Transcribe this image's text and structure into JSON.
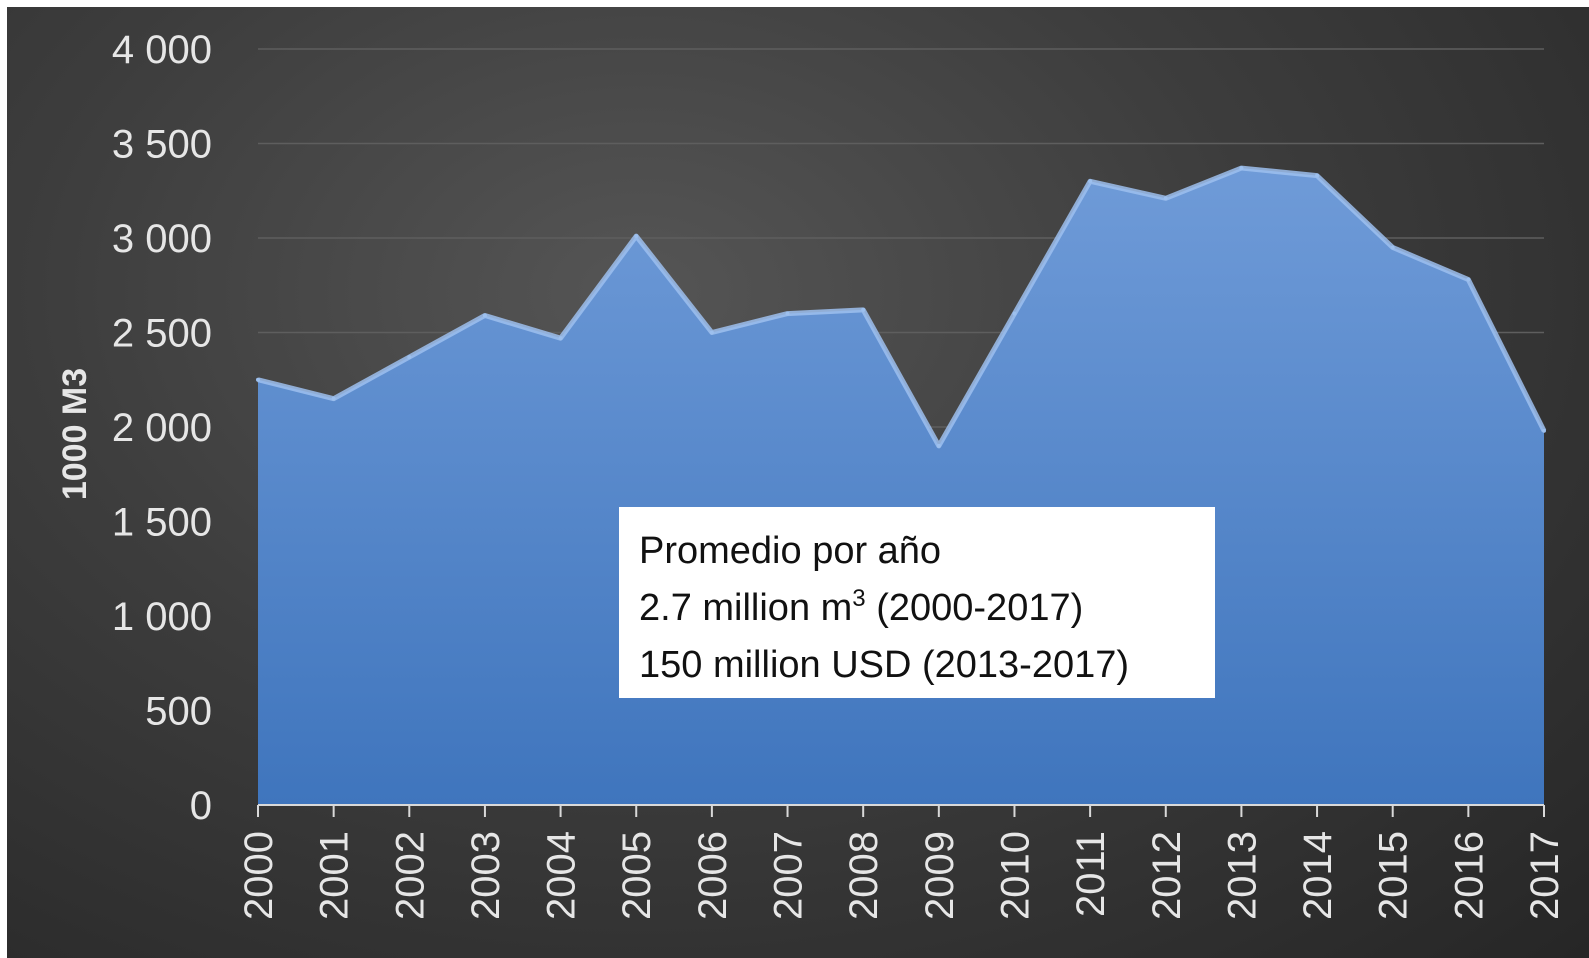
{
  "chart_data": {
    "type": "area",
    "title": "",
    "xlabel": "",
    "ylabel": "1000 M3",
    "categories": [
      "2000",
      "2001",
      "2002",
      "2003",
      "2004",
      "2005",
      "2006",
      "2007",
      "2008",
      "2009",
      "2010",
      "2011",
      "2012",
      "2013",
      "2014",
      "2015",
      "2016",
      "2017"
    ],
    "series": [
      {
        "values": [
          2250,
          2150,
          2370,
          2590,
          2470,
          3010,
          2500,
          2600,
          2620,
          1900,
          2600,
          3300,
          3210,
          3370,
          3330,
          2950,
          2780,
          1980
        ]
      }
    ],
    "ylim": [
      0,
      4000
    ],
    "yticks": [
      0,
      500,
      1000,
      1500,
      2000,
      2500,
      3000,
      3500,
      4000
    ],
    "ytick_labels": [
      "0",
      "500",
      "1 000",
      "1 500",
      "2 000",
      "2 500",
      "3 000",
      "3 500",
      "4 000"
    ],
    "grid": true,
    "colors": {
      "area_top": "#6f9bd8",
      "area_bottom": "#3f75bd",
      "edge": "#9dc0ee",
      "background": "#3a3a3a"
    },
    "annotation": {
      "line1": "Promedio por año",
      "line2_prefix": "2.7 million m",
      "line2_sup": "3",
      "line2_suffix": " (2000-2017)",
      "line3": "150 million USD (2013-2017)"
    }
  }
}
